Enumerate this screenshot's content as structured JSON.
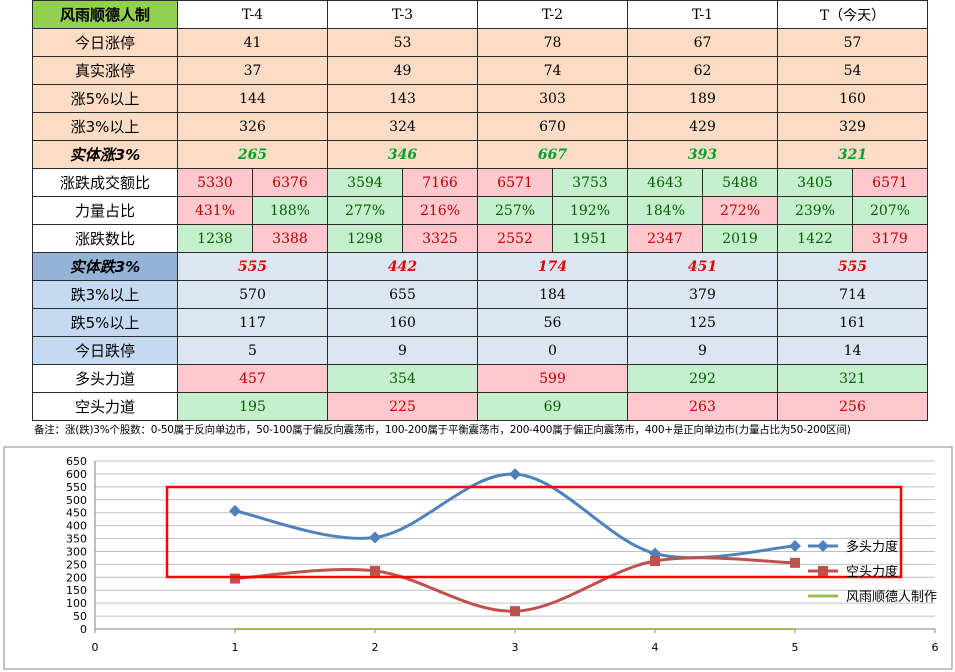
{
  "table": {
    "corner": "风雨顺德人制",
    "columns": [
      "T-4",
      "T-3",
      "T-2",
      "T-1",
      "T（今天）"
    ],
    "rows_top": [
      {
        "label": "今日涨停",
        "values": [
          "41",
          "53",
          "78",
          "67",
          "57"
        ]
      },
      {
        "label": "真实涨停",
        "values": [
          "37",
          "49",
          "74",
          "62",
          "54"
        ]
      },
      {
        "label": "涨5%以上",
        "values": [
          "144",
          "143",
          "303",
          "189",
          "160"
        ]
      },
      {
        "label": "涨3%以上",
        "values": [
          "326",
          "324",
          "670",
          "429",
          "329"
        ]
      }
    ],
    "shiti_zhang": {
      "label": "实体涨3%",
      "values": [
        "265",
        "346",
        "667",
        "393",
        "321"
      ]
    },
    "split_rows": [
      {
        "label": "涨跌成交额比",
        "pairs": [
          [
            "5330",
            "6376"
          ],
          [
            "3594",
            "7166"
          ],
          [
            "6571",
            "3753"
          ],
          [
            "4643",
            "5488"
          ],
          [
            "3405",
            "6571"
          ]
        ],
        "colors": [
          [
            "pink",
            "pink"
          ],
          [
            "green",
            "pink"
          ],
          [
            "pink",
            "green"
          ],
          [
            "green",
            "green"
          ],
          [
            "green",
            "pink"
          ]
        ]
      },
      {
        "label": "力量占比",
        "pairs": [
          [
            "431%",
            "188%"
          ],
          [
            "277%",
            "216%"
          ],
          [
            "257%",
            "192%"
          ],
          [
            "184%",
            "272%"
          ],
          [
            "239%",
            "207%"
          ]
        ],
        "colors": [
          [
            "pink",
            "green"
          ],
          [
            "green",
            "pink"
          ],
          [
            "green",
            "green"
          ],
          [
            "green",
            "pink"
          ],
          [
            "green",
            "green"
          ]
        ]
      },
      {
        "label": "涨跌数比",
        "pairs": [
          [
            "1238",
            "3388"
          ],
          [
            "1298",
            "3325"
          ],
          [
            "2552",
            "1951"
          ],
          [
            "2347",
            "2019"
          ],
          [
            "1422",
            "3179"
          ]
        ],
        "colors": [
          [
            "green",
            "pink"
          ],
          [
            "green",
            "pink"
          ],
          [
            "pink",
            "green"
          ],
          [
            "pink",
            "green"
          ],
          [
            "green",
            "pink"
          ]
        ]
      }
    ],
    "shiti_die": {
      "label": "实体跌3%",
      "values": [
        "555",
        "442",
        "174",
        "451",
        "555"
      ]
    },
    "rows_bottom": [
      {
        "label": "跌3%以上",
        "values": [
          "570",
          "655",
          "184",
          "379",
          "714"
        ]
      },
      {
        "label": "跌5%以上",
        "values": [
          "117",
          "160",
          "56",
          "125",
          "161"
        ]
      },
      {
        "label": "今日跌停",
        "values": [
          "5",
          "9",
          "0",
          "9",
          "14"
        ]
      }
    ],
    "duotou": {
      "label": "多头力道",
      "values": [
        "457",
        "354",
        "599",
        "292",
        "321"
      ],
      "colors": [
        "pink",
        "green",
        "pink",
        "green",
        "green"
      ]
    },
    "kongtou": {
      "label": "空头力道",
      "values": [
        "195",
        "225",
        "69",
        "263",
        "256"
      ],
      "colors": [
        "green",
        "pink",
        "green",
        "pink",
        "pink"
      ]
    }
  },
  "note": "备注：涨(跌)3%个股数：0-50属于反向单边市，50-100属于偏反向震荡市，100-200属于平衡震荡市，200-400属于偏正向震荡市，400+是正向单边市(力量占比为50-200区间)",
  "chart_data": {
    "type": "line",
    "x": [
      1,
      2,
      3,
      4,
      5
    ],
    "xlim": [
      0,
      6
    ],
    "ylim": [
      0,
      650
    ],
    "xticks": [
      0,
      1,
      2,
      3,
      4,
      5,
      6
    ],
    "yticks": [
      0,
      50,
      100,
      150,
      200,
      250,
      300,
      350,
      400,
      450,
      500,
      550,
      600,
      650
    ],
    "grid": "horizontal",
    "legend": "right",
    "series": [
      {
        "name": "多头力度",
        "values": [
          457,
          354,
          599,
          292,
          321
        ],
        "color": "#4f81bd",
        "marker": "diamond"
      },
      {
        "name": "空头力度",
        "values": [
          195,
          225,
          69,
          263,
          256
        ],
        "color": "#c0504d",
        "marker": "square"
      },
      {
        "name": "风雨顺德人制作",
        "values": [
          0,
          0,
          0,
          0,
          0
        ],
        "color": "#9bbb59",
        "marker": "none"
      }
    ]
  }
}
